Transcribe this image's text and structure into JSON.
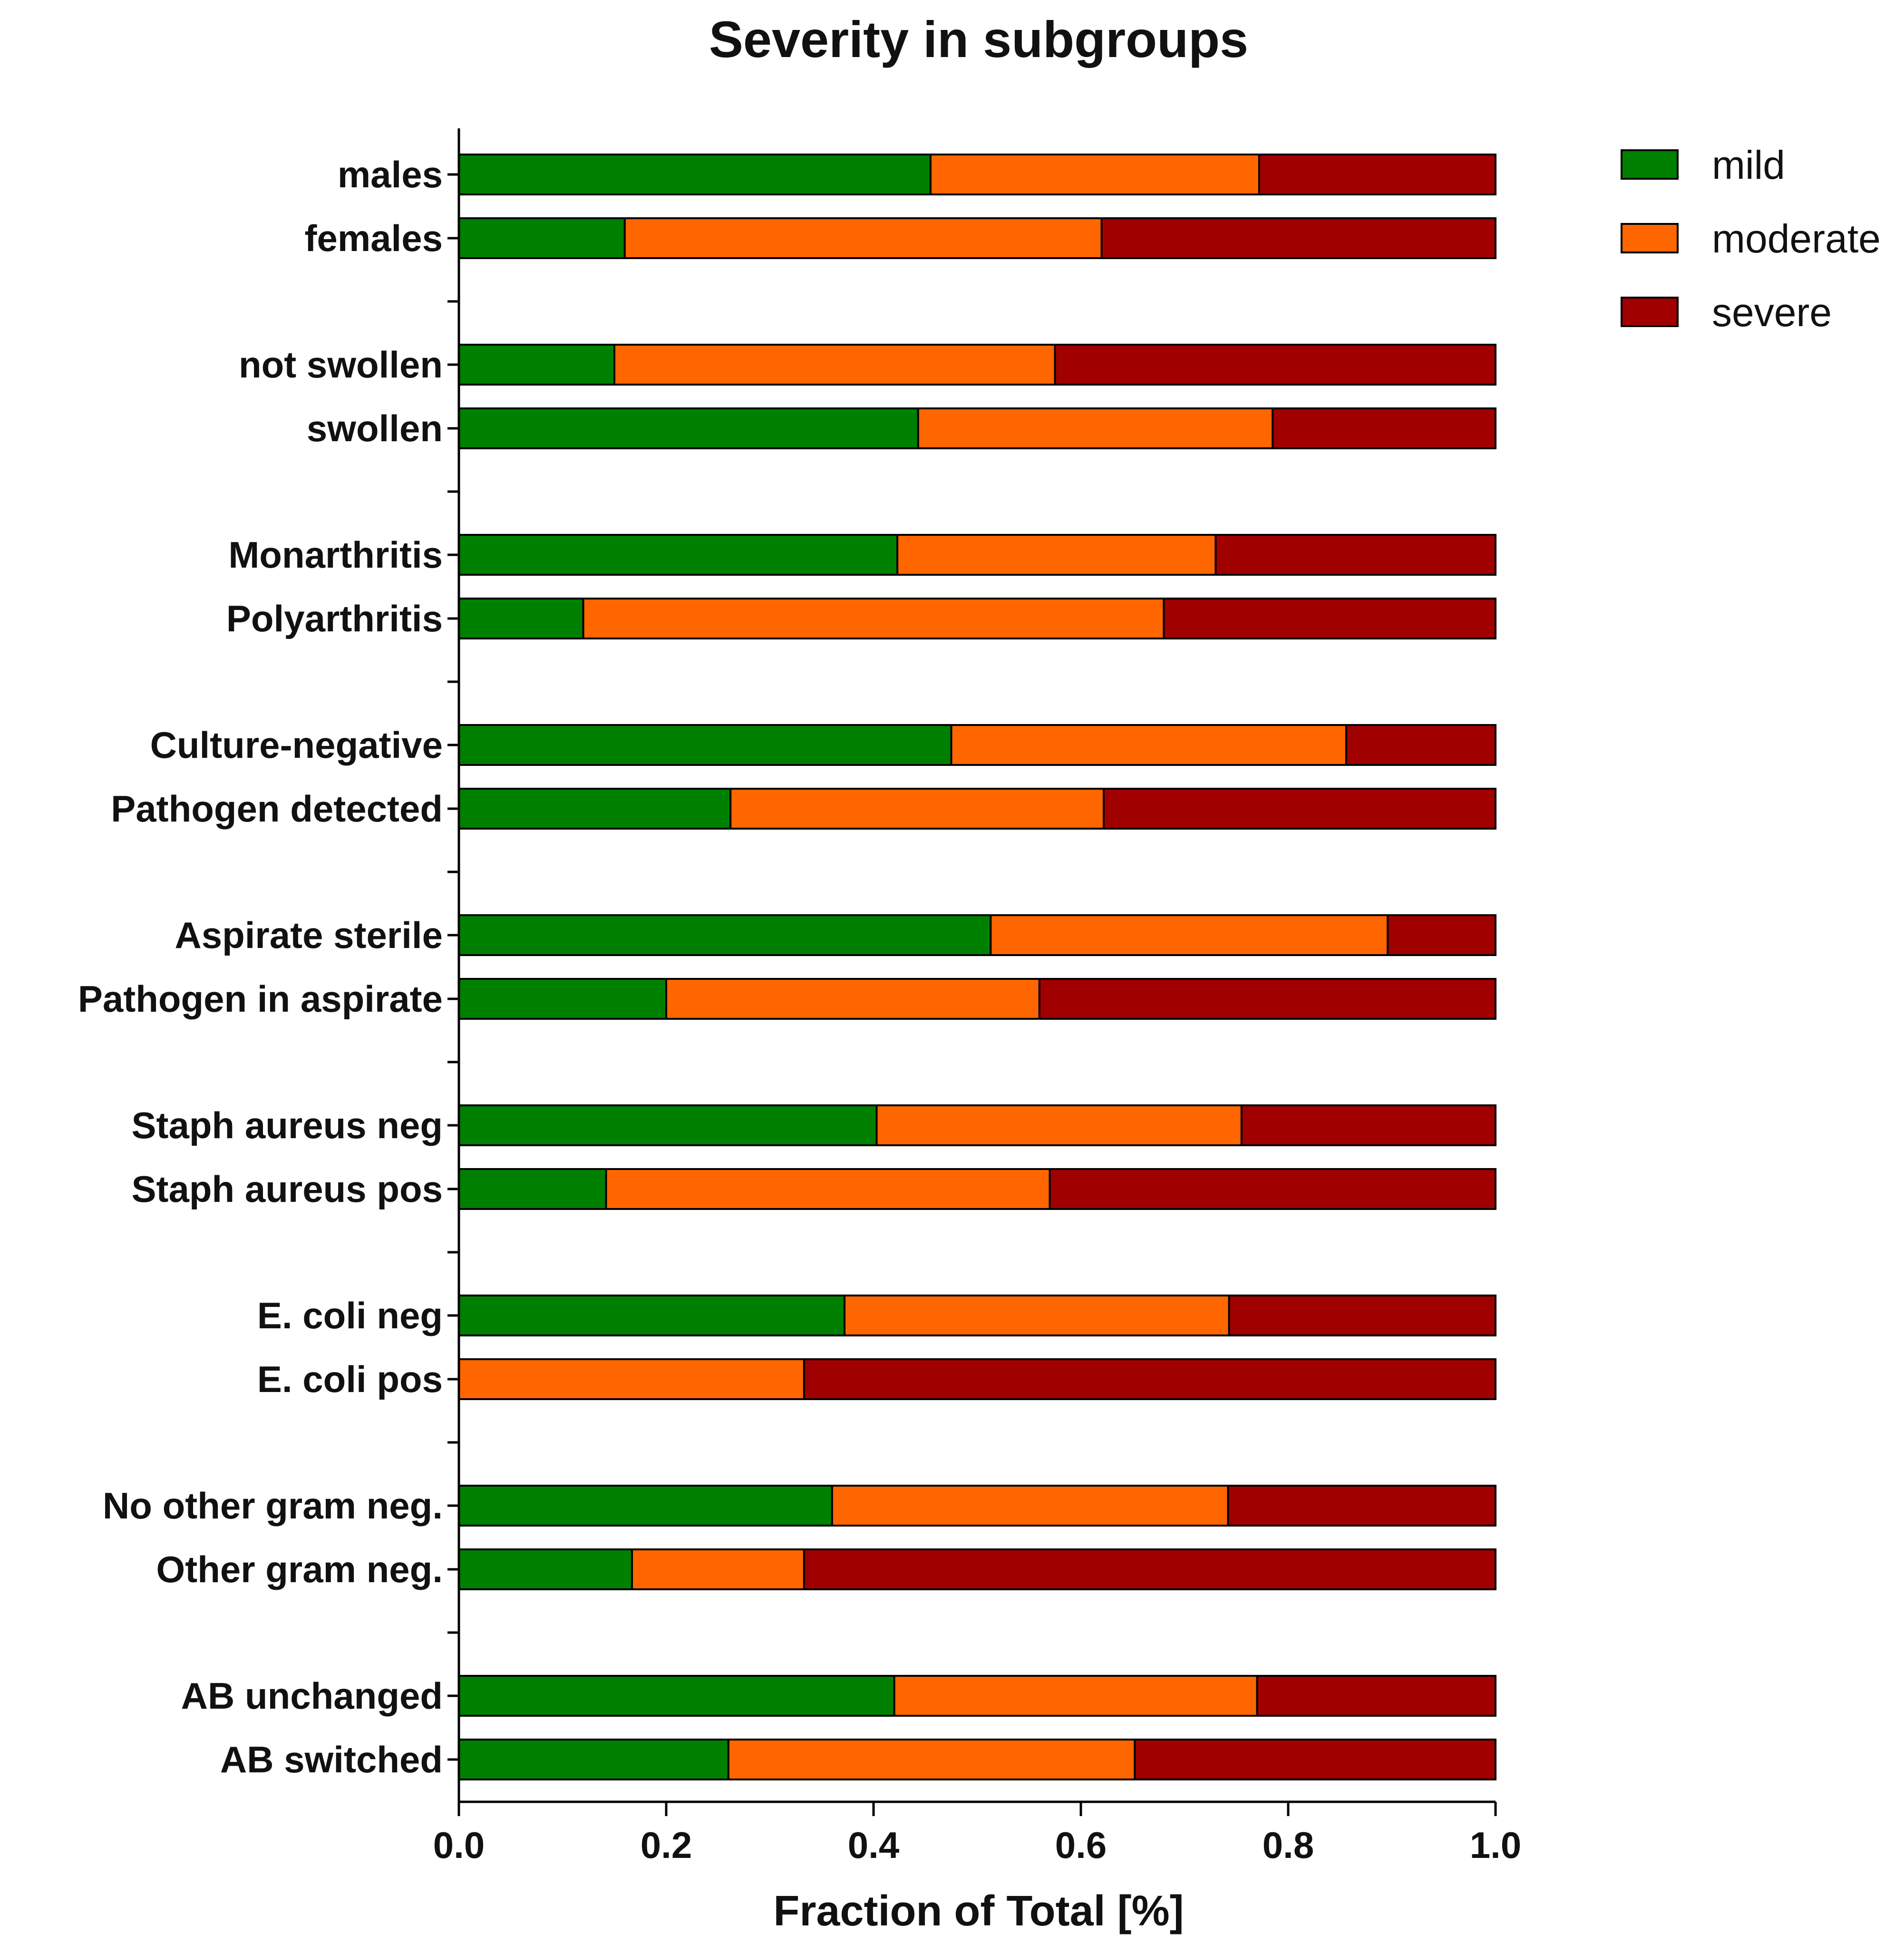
{
  "chart_data": {
    "type": "bar",
    "orientation": "horizontal",
    "stacked": true,
    "title": "Severity in subgroups",
    "xlabel": "Fraction of Total [%]",
    "ylabel": "",
    "xlim": [
      0,
      1
    ],
    "xticks": [
      "0.0",
      "0.2",
      "0.4",
      "0.6",
      "0.8",
      "1.0"
    ],
    "xtick_values": [
      0,
      0.2,
      0.4,
      0.6,
      0.8,
      1.0
    ],
    "legend_position": "top-right",
    "grid": false,
    "groups": [
      [
        "males",
        "females"
      ],
      [
        "not swollen",
        "swollen"
      ],
      [
        "Monarthritis",
        "Polyarthritis"
      ],
      [
        "Culture-negative",
        "Pathogen detected"
      ],
      [
        "Aspirate sterile",
        "Pathogen in aspirate"
      ],
      [
        "Staph aureus neg",
        "Staph aureus pos"
      ],
      [
        "E. coli neg",
        "E. coli pos"
      ],
      [
        "No other gram neg.",
        "Other gram neg."
      ],
      [
        "AB unchanged",
        "AB switched"
      ]
    ],
    "categories": [
      "males",
      "females",
      "not swollen",
      "swollen",
      "Monarthritis",
      "Polyarthritis",
      "Culture-negative",
      "Pathogen detected",
      "Aspirate sterile",
      "Pathogen in aspirate",
      "Staph aureus neg",
      "Staph aureus pos",
      "E. coli neg",
      "E. coli pos",
      "No other gram neg.",
      "Other gram neg.",
      "AB unchanged",
      "AB switched"
    ],
    "series": [
      {
        "name": "mild",
        "color": "#008000",
        "values": [
          0.455,
          0.16,
          0.15,
          0.443,
          0.423,
          0.12,
          0.475,
          0.262,
          0.513,
          0.2,
          0.403,
          0.142,
          0.372,
          0.0,
          0.36,
          0.167,
          0.42,
          0.26
        ]
      },
      {
        "name": "moderate",
        "color": "#ff6600",
        "values": [
          0.317,
          0.46,
          0.425,
          0.342,
          0.307,
          0.56,
          0.381,
          0.36,
          0.383,
          0.36,
          0.352,
          0.428,
          0.371,
          0.333,
          0.382,
          0.166,
          0.35,
          0.392
        ]
      },
      {
        "name": "severe",
        "color": "#a00000",
        "values": [
          0.228,
          0.38,
          0.425,
          0.215,
          0.27,
          0.32,
          0.144,
          0.378,
          0.104,
          0.44,
          0.245,
          0.43,
          0.257,
          0.667,
          0.258,
          0.667,
          0.23,
          0.348
        ]
      }
    ]
  }
}
